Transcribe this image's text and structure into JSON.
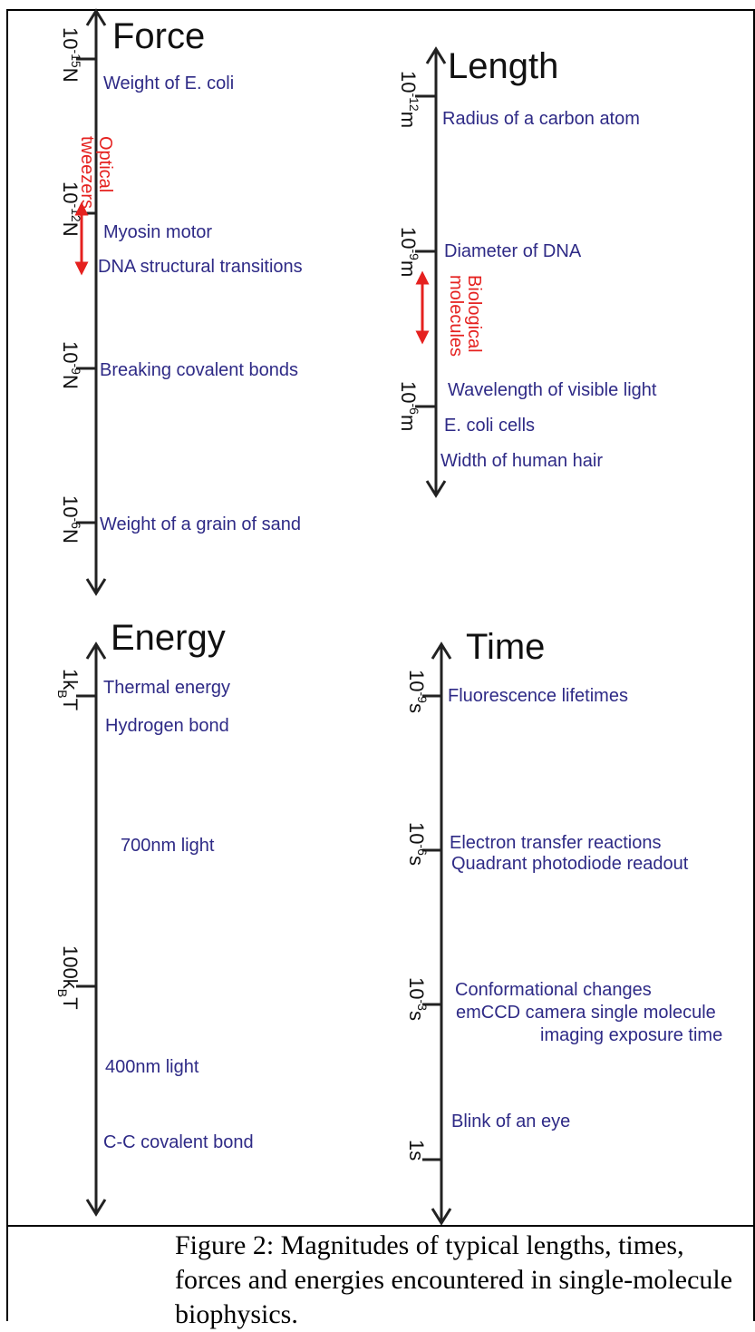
{
  "force": {
    "title": "Force",
    "ticks": [
      {
        "base": "10",
        "exp": "-15",
        "unit": "N"
      },
      {
        "base": "10",
        "exp": "-12",
        "unit": "N"
      },
      {
        "base": "10",
        "exp": "-9",
        "unit": "N"
      },
      {
        "base": "10",
        "exp": "-6",
        "unit": "N"
      }
    ],
    "labels": [
      "Weight of E. coli",
      "Myosin motor",
      "DNA structural transitions",
      "Breaking covalent bonds",
      "Weight of a grain of sand"
    ],
    "range_label": [
      "Optical",
      "tweezers"
    ]
  },
  "length": {
    "title": "Length",
    "ticks": [
      {
        "base": "10",
        "exp": "-12",
        "unit": "m"
      },
      {
        "base": "10",
        "exp": "-9",
        "unit": "m"
      },
      {
        "base": "10",
        "exp": "-6",
        "unit": "m"
      }
    ],
    "labels": [
      "Radius of a carbon atom",
      "Diameter of DNA",
      "Wavelength of visible light",
      "E. coli cells",
      "Width of human hair"
    ],
    "range_label": [
      "Biological",
      "molecules"
    ]
  },
  "energy": {
    "title": "Energy",
    "ticks": [
      {
        "pre": "1k",
        "sub": "B",
        "post": "T"
      },
      {
        "pre": "100k",
        "sub": "B",
        "post": "T"
      }
    ],
    "labels": [
      "Thermal energy",
      "Hydrogen bond",
      "700nm light",
      "400nm light",
      "C-C covalent bond"
    ]
  },
  "time": {
    "title": "Time",
    "ticks": [
      {
        "base": "10",
        "exp": "-9",
        "unit": "s"
      },
      {
        "base": "10",
        "exp": "-6",
        "unit": "s"
      },
      {
        "base": "10",
        "exp": "-3",
        "unit": "s"
      },
      {
        "base": "1s",
        "exp": "",
        "unit": ""
      }
    ],
    "labels": [
      "Fluorescence lifetimes",
      "Electron transfer reactions",
      "Quadrant photodiode readout",
      "Conformational changes",
      "emCCD camera single molecule",
      "imaging exposure time",
      "Blink of an eye"
    ]
  },
  "caption": "Figure 2: Magnitudes of typical lengths, times, forces and energies encountered in single-molecule biophysics.",
  "colors": {
    "label": "#2e2a86",
    "range": "#e5211f",
    "axis": "#222222"
  }
}
